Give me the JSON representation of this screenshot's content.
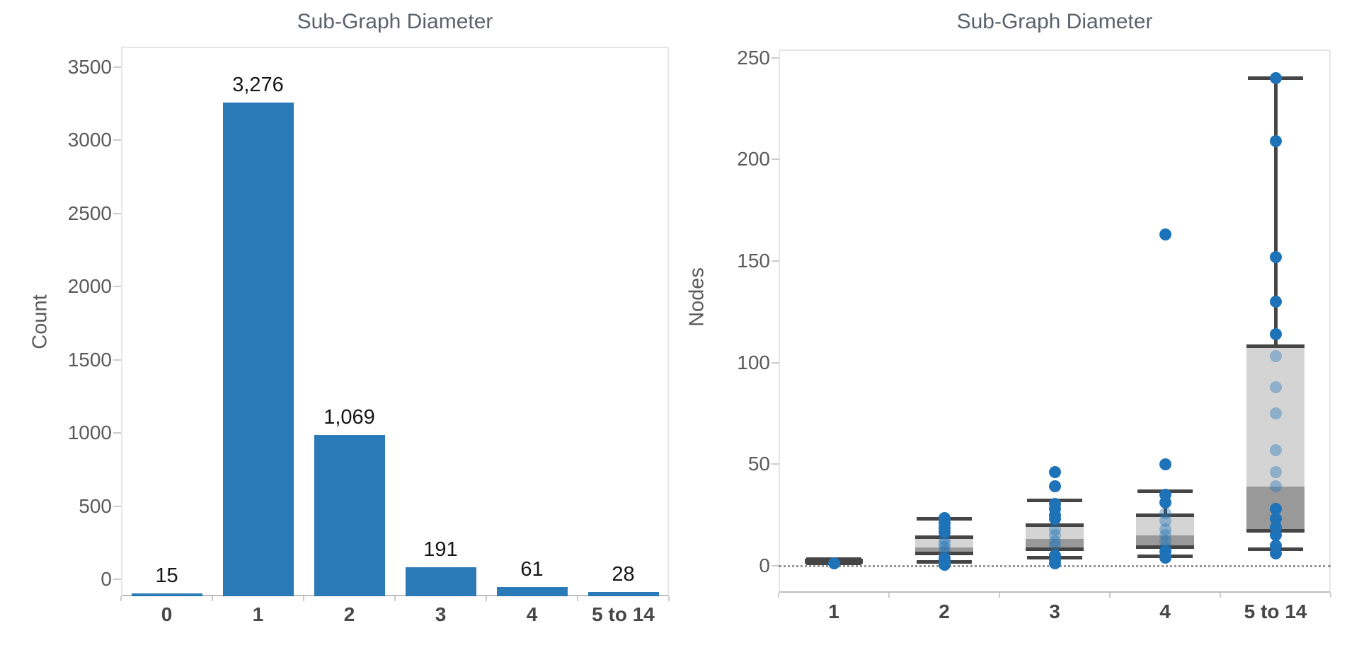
{
  "colors": {
    "bar_blue": "#2b7ab8",
    "point_blue": "#1e73b8",
    "box_fill_light": "#d4d4d4",
    "box_fill_dark": "#999999",
    "box_line_gray": "#454545",
    "title_gray": "#5a626b",
    "tick_label_gray": "#5a5a5a",
    "category_label_gray": "#474747",
    "value_label_black": "#161616",
    "axis_line_gray": "#bdbdbd",
    "zero_line_gray": "#969696"
  },
  "chart_data": [
    {
      "type": "bar",
      "title": "Sub-Graph Diameter",
      "xlabel": "",
      "ylabel": "Count",
      "categories": [
        "0",
        "1",
        "2",
        "3",
        "4",
        "5 to 14"
      ],
      "values": [
        15,
        3276,
        1069,
        191,
        61,
        28
      ],
      "value_labels": [
        "15",
        "3,276",
        "1,069",
        "191",
        "61",
        "28"
      ],
      "yticks": [
        0,
        500,
        1000,
        1500,
        2000,
        2500,
        3000,
        3500
      ],
      "ytick_labels": [
        "0",
        "500",
        "1000",
        "1500",
        "2000",
        "2500",
        "3000",
        "3500"
      ],
      "ylim": [
        0,
        3500
      ],
      "grid": false,
      "legend": "none"
    },
    {
      "type": "boxplot",
      "title": "Sub-Graph Diameter",
      "xlabel": "",
      "ylabel": "Nodes",
      "categories": [
        "1",
        "2",
        "3",
        "4",
        "5 to 14"
      ],
      "yticks": [
        0,
        50,
        100,
        150,
        200,
        250
      ],
      "ytick_labels": [
        "0",
        "50",
        "100",
        "150",
        "200",
        "250"
      ],
      "ylim": [
        -14,
        260
      ],
      "zero_reference_line": true,
      "grid": false,
      "legend": "none",
      "boxes": [
        {
          "category": "1",
          "whisker_low": 1.3,
          "q1": 1.8,
          "median": 2.2,
          "q3": 2.7,
          "whisker_high": 3.2,
          "points": [
            {
              "v": 1,
              "faded": false
            }
          ]
        },
        {
          "category": "2",
          "whisker_low": 2,
          "q1": 6,
          "median": 9,
          "q3": 14,
          "whisker_high": 23,
          "points": [
            {
              "v": 23.5,
              "faded": false
            },
            {
              "v": 21,
              "faded": false
            },
            {
              "v": 18.5,
              "faded": false
            },
            {
              "v": 16.5,
              "faded": false
            },
            {
              "v": 13,
              "faded": true
            },
            {
              "v": 11,
              "faded": true
            },
            {
              "v": 9,
              "faded": true
            },
            {
              "v": 7,
              "faded": true
            },
            {
              "v": 3.5,
              "faded": false
            },
            {
              "v": 2,
              "faded": false
            },
            {
              "v": 0.5,
              "faded": false
            }
          ]
        },
        {
          "category": "3",
          "whisker_low": 4,
          "q1": 8,
          "median": 13,
          "q3": 20,
          "whisker_high": 32,
          "points": [
            {
              "v": 46,
              "faded": false
            },
            {
              "v": 39,
              "faded": false
            },
            {
              "v": 30.5,
              "faded": false
            },
            {
              "v": 28,
              "faded": false
            },
            {
              "v": 25,
              "faded": false
            },
            {
              "v": 23,
              "faded": false
            },
            {
              "v": 18,
              "faded": true
            },
            {
              "v": 15,
              "faded": true
            },
            {
              "v": 12,
              "faded": true
            },
            {
              "v": 10,
              "faded": true
            },
            {
              "v": 5,
              "faded": false
            },
            {
              "v": 3,
              "faded": false
            },
            {
              "v": 1,
              "faded": false
            }
          ]
        },
        {
          "category": "4",
          "whisker_low": 4.5,
          "q1": 9,
          "median": 15,
          "q3": 25,
          "whisker_high": 36.5,
          "points": [
            {
              "v": 163,
              "faded": false
            },
            {
              "v": 50,
              "faded": false
            },
            {
              "v": 35,
              "faded": false
            },
            {
              "v": 31,
              "faded": false
            },
            {
              "v": 26,
              "faded": true
            },
            {
              "v": 22,
              "faded": true
            },
            {
              "v": 18,
              "faded": true
            },
            {
              "v": 15,
              "faded": true
            },
            {
              "v": 12,
              "faded": true
            },
            {
              "v": 9,
              "faded": true
            },
            {
              "v": 7,
              "faded": false
            },
            {
              "v": 4,
              "faded": false
            }
          ]
        },
        {
          "category": "5 to 14",
          "whisker_low": 8,
          "q1": 17,
          "median": 39,
          "q3": 108,
          "whisker_high": 240,
          "points": [
            {
              "v": 240,
              "faded": false
            },
            {
              "v": 209,
              "faded": false
            },
            {
              "v": 152,
              "faded": false
            },
            {
              "v": 130,
              "faded": false
            },
            {
              "v": 114,
              "faded": false
            },
            {
              "v": 103,
              "faded": true
            },
            {
              "v": 88,
              "faded": true
            },
            {
              "v": 75,
              "faded": true
            },
            {
              "v": 57,
              "faded": true
            },
            {
              "v": 46,
              "faded": true
            },
            {
              "v": 39,
              "faded": true
            },
            {
              "v": 28,
              "faded": false
            },
            {
              "v": 23,
              "faded": false
            },
            {
              "v": 19,
              "faded": false
            },
            {
              "v": 15,
              "faded": false
            },
            {
              "v": 10,
              "faded": false
            },
            {
              "v": 6,
              "faded": false
            }
          ]
        }
      ]
    }
  ]
}
